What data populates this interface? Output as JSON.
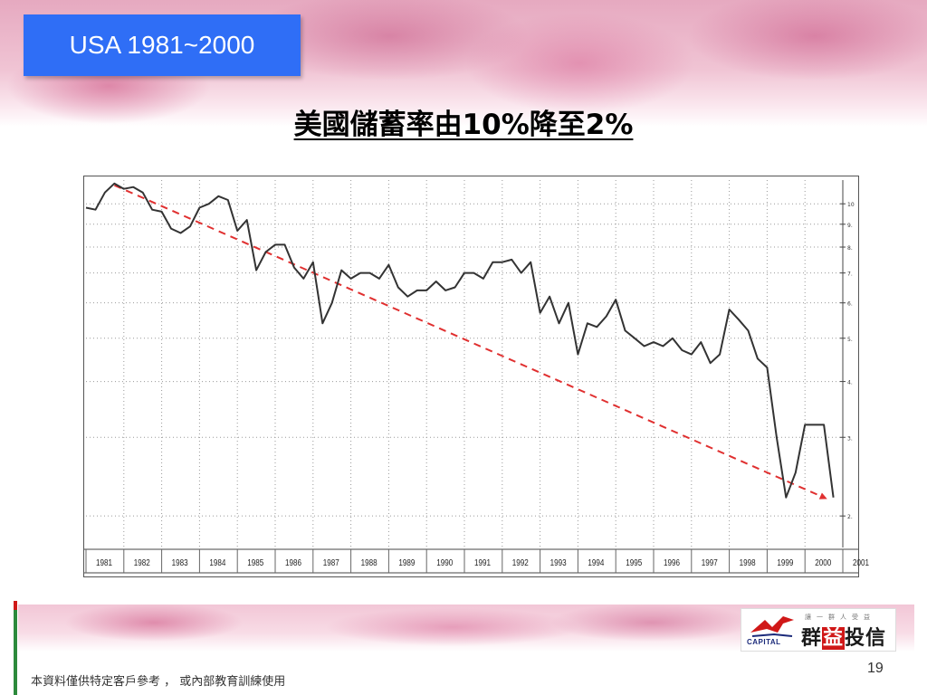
{
  "slide": {
    "tag": "USA 1981~2000",
    "heading": "美國儲蓄率由10%降至2%",
    "footer_note": "本資料僅供特定客戶參考 ， 或內部教育訓練使用",
    "page_number": "19"
  },
  "logo": {
    "brand_en": "CAPITAL",
    "slogan": "讓一群人受益",
    "name_pre": "群",
    "name_hl": "益",
    "name_post": "投信",
    "colors": {
      "accent": "#d01818",
      "navy": "#1b2a7a"
    }
  },
  "chart_data": {
    "type": "line",
    "title": "",
    "xlabel": "",
    "ylabel": "",
    "xlim": [
      1981,
      2001
    ],
    "ylim": [
      1.7,
      11.3
    ],
    "y_scale": "log",
    "x_ticks": [
      "1981",
      "1982",
      "1983",
      "1984",
      "1985",
      "1986",
      "1987",
      "1988",
      "1989",
      "1990",
      "1991",
      "1992",
      "1993",
      "1994",
      "1995",
      "1996",
      "1997",
      "1998",
      "1999",
      "2000",
      "2001"
    ],
    "y_ticks": [
      "10",
      "9.",
      "8.",
      "7.",
      "6.",
      "5.",
      "4.",
      "3.",
      "2."
    ],
    "y_tick_values": [
      10,
      9,
      8,
      7,
      6,
      5,
      4,
      3,
      2
    ],
    "grid": true,
    "series": [
      {
        "color": "#333333",
        "x": [
          1981.0,
          1981.25,
          1981.5,
          1981.75,
          1982.0,
          1982.25,
          1982.5,
          1982.75,
          1983.0,
          1983.25,
          1983.5,
          1983.75,
          1984.0,
          1984.25,
          1984.5,
          1984.75,
          1985.0,
          1985.25,
          1985.5,
          1985.75,
          1986.0,
          1986.25,
          1986.5,
          1986.75,
          1987.0,
          1987.25,
          1987.5,
          1987.75,
          1988.0,
          1988.25,
          1988.5,
          1988.75,
          1989.0,
          1989.25,
          1989.5,
          1989.75,
          1990.0,
          1990.25,
          1990.5,
          1990.75,
          1991.0,
          1991.25,
          1991.5,
          1991.75,
          1992.0,
          1992.25,
          1992.5,
          1992.75,
          1993.0,
          1993.25,
          1993.5,
          1993.75,
          1994.0,
          1994.25,
          1994.5,
          1994.75,
          1995.0,
          1995.25,
          1995.5,
          1995.75,
          1996.0,
          1996.25,
          1996.5,
          1996.75,
          1997.0,
          1997.25,
          1997.5,
          1997.75,
          1998.0,
          1998.25,
          1998.5,
          1998.75,
          1999.0,
          1999.25,
          1999.5,
          1999.75,
          2000.0,
          2000.25,
          2000.5,
          2000.75
        ],
        "y": [
          9.8,
          9.7,
          10.6,
          11.1,
          10.8,
          10.9,
          10.6,
          9.7,
          9.6,
          8.8,
          8.6,
          8.9,
          9.8,
          10.0,
          10.4,
          10.2,
          8.7,
          9.2,
          7.1,
          7.8,
          8.1,
          8.1,
          7.2,
          6.8,
          7.4,
          5.4,
          6.0,
          7.1,
          6.8,
          7.0,
          7.0,
          6.8,
          7.3,
          6.5,
          6.2,
          6.4,
          6.4,
          6.7,
          6.4,
          6.5,
          7.0,
          7.0,
          6.8,
          7.4,
          7.4,
          7.5,
          7.0,
          7.4,
          5.7,
          6.2,
          5.4,
          6.0,
          4.6,
          5.4,
          5.3,
          5.6,
          6.1,
          5.2,
          5.0,
          4.8,
          4.9,
          4.8,
          5.0,
          4.7,
          4.6,
          4.9,
          4.4,
          4.6,
          5.8,
          5.5,
          5.2,
          4.5,
          4.3,
          3.0,
          2.2,
          2.5,
          3.2,
          3.2,
          3.2,
          2.2
        ]
      }
    ],
    "trend_line": {
      "from": [
        1981.75,
        11.0
      ],
      "to": [
        2000.5,
        2.2
      ],
      "color": "#e03030",
      "style": "dashed"
    }
  }
}
